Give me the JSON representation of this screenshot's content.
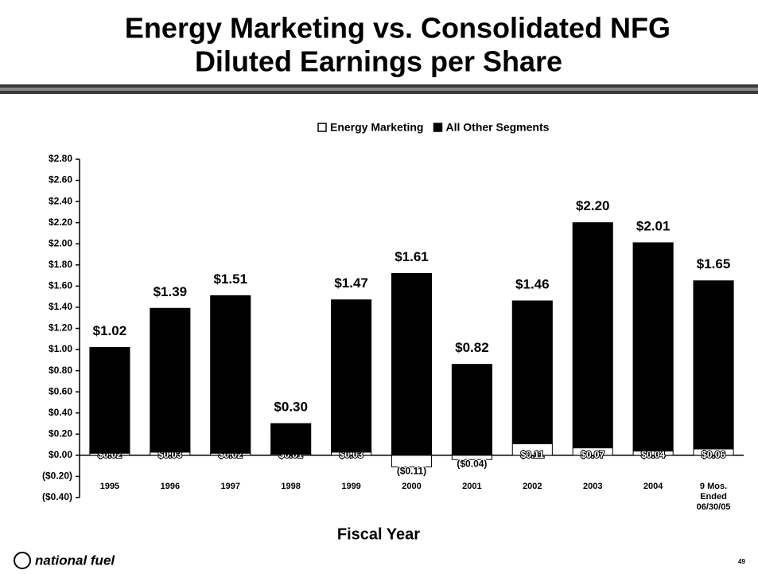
{
  "chart_data": {
    "type": "stacked_bar",
    "title": "Energy Marketing vs. Consolidated NFG",
    "subtitle": "Diluted Earnings per Share",
    "x_label": "Fiscal Year",
    "categories": [
      "1995",
      "1996",
      "1997",
      "1998",
      "1999",
      "2000",
      "2001",
      "2002",
      "2003",
      "2004",
      "9 Mos. Ended 06/30/05"
    ],
    "series": [
      {
        "name": "Energy Marketing",
        "color": "#ffffff",
        "values": [
          0.02,
          0.03,
          0.02,
          0.01,
          0.03,
          -0.11,
          -0.04,
          0.11,
          0.07,
          0.04,
          0.06
        ],
        "value_labels": [
          "$0.02",
          "$0.03",
          "$0.02",
          "$0.01",
          "$0.03",
          "($0.11)",
          "($0.04)",
          "$0.11",
          "$0.07",
          "$0.04",
          "$0.06"
        ]
      },
      {
        "name": "All Other Segments",
        "color": "#000000",
        "values": [
          1.0,
          1.36,
          1.49,
          0.29,
          1.44,
          1.72,
          0.86,
          1.35,
          2.13,
          1.97,
          1.59
        ]
      }
    ],
    "totals": [
      1.02,
      1.39,
      1.51,
      0.3,
      1.47,
      1.61,
      0.82,
      1.46,
      2.2,
      2.01,
      1.65
    ],
    "total_labels": [
      "$1.02",
      "$1.39",
      "$1.51",
      "$0.30",
      "$1.47",
      "$1.61",
      "$0.82",
      "$1.46",
      "$2.20",
      "$2.01",
      "$1.65"
    ],
    "ylim": [
      -0.4,
      2.8
    ],
    "yticks": [
      {
        "value": -0.4,
        "label": "($0.40)"
      },
      {
        "value": -0.2,
        "label": "($0.20)"
      },
      {
        "value": 0,
        "label": "$0.00"
      },
      {
        "value": 0.2,
        "label": "$0.20"
      },
      {
        "value": 0.4,
        "label": "$0.40"
      },
      {
        "value": 0.6,
        "label": "$0.60"
      },
      {
        "value": 0.8,
        "label": "$0.80"
      },
      {
        "value": 1.0,
        "label": "$1.00"
      },
      {
        "value": 1.2,
        "label": "$1.20"
      },
      {
        "value": 1.4,
        "label": "$1.40"
      },
      {
        "value": 1.6,
        "label": "$1.60"
      },
      {
        "value": 1.8,
        "label": "$1.80"
      },
      {
        "value": 2.0,
        "label": "$2.00"
      },
      {
        "value": 2.2,
        "label": "$2.20"
      },
      {
        "value": 2.4,
        "label": "$2.40"
      },
      {
        "value": 2.6,
        "label": "$2.60"
      },
      {
        "value": 2.8,
        "label": "$2.80"
      }
    ],
    "legend": "top",
    "logo": "national fuel",
    "page_number": "49"
  }
}
